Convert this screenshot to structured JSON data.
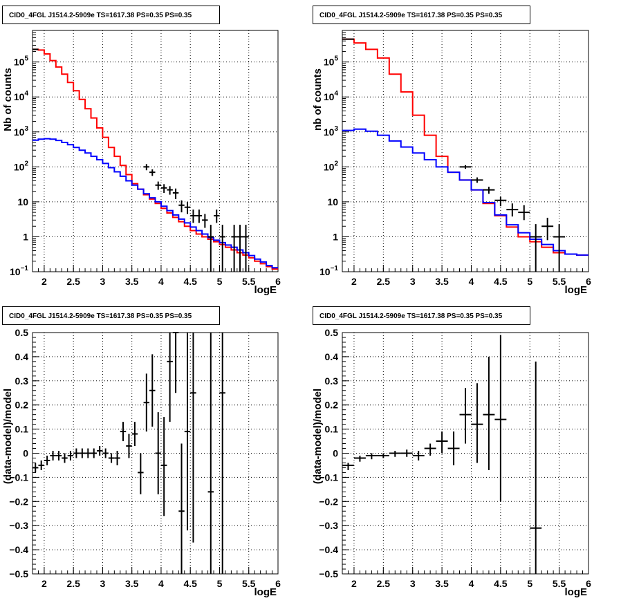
{
  "chart_data": [
    {
      "type": "line",
      "title": "CID0_4FGL J1514.2-5909e TS=1617.38 PS=0.35 PS=0.35",
      "xlabel": "logE",
      "ylabel": "Nb of counts",
      "xlim": [
        1.8,
        6.0
      ],
      "ylim": [
        0.1,
        800000
      ],
      "yscale": "log",
      "grid": true,
      "xticks": [
        "2",
        "2.5",
        "3",
        "3.5",
        "4",
        "4.5",
        "5",
        "5.5",
        "6"
      ],
      "yticks": [
        {
          "v": 0.1,
          "base": "10",
          "exp": "−1"
        },
        {
          "v": 1,
          "label": "1"
        },
        {
          "v": 10,
          "label": "10"
        },
        {
          "v": 100,
          "base": "10",
          "exp": "2"
        },
        {
          "v": 1000,
          "base": "10",
          "exp": "3"
        },
        {
          "v": 10000,
          "base": "10",
          "exp": "4"
        },
        {
          "v": 100000,
          "base": "10",
          "exp": "5"
        }
      ],
      "series": [
        {
          "color": "#ff0000",
          "kind": "step",
          "edges": [
            1.8,
            1.9,
            2.0,
            2.1,
            2.2,
            2.3,
            2.4,
            2.5,
            2.6,
            2.7,
            2.8,
            2.9,
            3.0,
            3.1,
            3.2,
            3.3,
            3.4,
            3.5,
            3.6,
            3.7,
            3.8,
            3.9,
            4.0,
            4.1,
            4.2,
            4.3,
            4.4,
            4.5,
            4.6,
            4.7,
            4.8,
            4.9,
            5.0,
            5.1,
            5.2,
            5.3,
            5.4,
            5.5,
            5.6,
            5.7,
            5.8,
            5.9,
            6.0
          ],
          "values": [
            230000,
            220000,
            170000,
            110000,
            72000,
            45000,
            26000,
            15000,
            8500,
            4600,
            2500,
            1300,
            700,
            360,
            200,
            110,
            60,
            33,
            23,
            16,
            12,
            9,
            6.5,
            4.8,
            3.6,
            2.7,
            2.0,
            1.5,
            1.2,
            1.0,
            0.85,
            0.72,
            0.6,
            0.5,
            0.42,
            0.35,
            0.3,
            0.25,
            0.2,
            0.17,
            0.14,
            0.12
          ]
        },
        {
          "color": "#0000ff",
          "kind": "step",
          "edges": [
            1.8,
            1.9,
            2.0,
            2.1,
            2.2,
            2.3,
            2.4,
            2.5,
            2.6,
            2.7,
            2.8,
            2.9,
            3.0,
            3.1,
            3.2,
            3.3,
            3.4,
            3.5,
            3.6,
            3.7,
            3.8,
            3.9,
            4.0,
            4.1,
            4.2,
            4.3,
            4.4,
            4.5,
            4.6,
            4.7,
            4.8,
            4.9,
            5.0,
            5.1,
            5.2,
            5.3,
            5.4,
            5.5,
            5.6,
            5.7,
            5.8,
            5.9,
            6.0
          ],
          "values": [
            580,
            620,
            640,
            620,
            570,
            500,
            430,
            360,
            300,
            250,
            200,
            160,
            125,
            95,
            72,
            54,
            40,
            30,
            23,
            17,
            13,
            10,
            7.5,
            5.6,
            4.2,
            3.2,
            2.5,
            1.9,
            1.5,
            1.2,
            0.95,
            0.8,
            0.68,
            0.58,
            0.5,
            0.42,
            0.35,
            0.29,
            0.23,
            0.19,
            0.15,
            0.13
          ]
        },
        {
          "color": "#000000",
          "kind": "errorbar",
          "points": [
            {
              "x": 1.85,
              "y": 230000,
              "dx": 0.05,
              "lo": 225000,
              "hi": 235000
            },
            {
              "x": 3.75,
              "y": 100,
              "dx": 0.05,
              "lo": 80,
              "hi": 120
            },
            {
              "x": 3.85,
              "y": 70,
              "dx": 0.05,
              "lo": 55,
              "hi": 85
            },
            {
              "x": 3.95,
              "y": 30,
              "dx": 0.05,
              "lo": 22,
              "hi": 38
            },
            {
              "x": 4.05,
              "y": 25,
              "dx": 0.05,
              "lo": 18,
              "hi": 32
            },
            {
              "x": 4.15,
              "y": 22,
              "dx": 0.05,
              "lo": 16,
              "hi": 28
            },
            {
              "x": 4.25,
              "y": 18,
              "dx": 0.05,
              "lo": 12,
              "hi": 24
            },
            {
              "x": 4.35,
              "y": 8,
              "dx": 0.05,
              "lo": 5,
              "hi": 11
            },
            {
              "x": 4.45,
              "y": 7,
              "dx": 0.05,
              "lo": 4.5,
              "hi": 10
            },
            {
              "x": 4.55,
              "y": 4,
              "dx": 0.05,
              "lo": 2.5,
              "hi": 6
            },
            {
              "x": 4.65,
              "y": 4,
              "dx": 0.05,
              "lo": 2.5,
              "hi": 6
            },
            {
              "x": 4.75,
              "y": 3,
              "dx": 0.05,
              "lo": 1.8,
              "hi": 4.5
            },
            {
              "x": 4.85,
              "y": 1,
              "dx": 0.05,
              "lo": 0.1,
              "hi": 2.2
            },
            {
              "x": 4.95,
              "y": 4,
              "dx": 0.05,
              "lo": 2.5,
              "hi": 6
            },
            {
              "x": 5.05,
              "y": 1,
              "dx": 0.05,
              "lo": 0.1,
              "hi": 2.2
            },
            {
              "x": 5.25,
              "y": 1,
              "dx": 0.05,
              "lo": 0.1,
              "hi": 2.2
            },
            {
              "x": 5.35,
              "y": 1,
              "dx": 0.05,
              "lo": 0.1,
              "hi": 2.2
            },
            {
              "x": 5.45,
              "y": 1,
              "dx": 0.05,
              "lo": 0.1,
              "hi": 2.2
            }
          ]
        }
      ]
    },
    {
      "type": "line",
      "title": "CID0_4FGL J1514.2-5909e TS=1617.38 PS=0.35 PS=0.35",
      "xlabel": "logE",
      "ylabel": "nb of counts",
      "xlim": [
        1.8,
        6.0
      ],
      "ylim": [
        0.1,
        800000
      ],
      "yscale": "log",
      "grid": true,
      "xticks": [
        "2",
        "2.5",
        "3",
        "3.5",
        "4",
        "4.5",
        "5",
        "5.5",
        "6"
      ],
      "yticks": [
        {
          "v": 0.1,
          "base": "10",
          "exp": "−1"
        },
        {
          "v": 1,
          "label": "1"
        },
        {
          "v": 10,
          "label": "10"
        },
        {
          "v": 100,
          "base": "10",
          "exp": "2"
        },
        {
          "v": 1000,
          "base": "10",
          "exp": "3"
        },
        {
          "v": 10000,
          "base": "10",
          "exp": "4"
        },
        {
          "v": 100000,
          "base": "10",
          "exp": "5"
        }
      ],
      "series": [
        {
          "color": "#ff0000",
          "kind": "step",
          "edges": [
            1.8,
            2.0,
            2.2,
            2.4,
            2.6,
            2.8,
            3.0,
            3.2,
            3.4,
            3.6,
            3.8,
            4.0,
            4.2,
            4.4,
            4.6,
            4.8,
            5.0,
            5.2,
            5.4,
            5.6,
            5.8,
            6.0
          ],
          "values": [
            450000,
            350000,
            230000,
            130000,
            45000,
            14000,
            3000,
            800,
            200,
            70,
            42,
            22,
            9,
            4,
            1.9,
            1.0,
            0.72,
            0.5,
            0.35,
            0.32,
            0.3
          ]
        },
        {
          "color": "#0000ff",
          "kind": "step",
          "edges": [
            1.8,
            2.0,
            2.2,
            2.4,
            2.6,
            2.8,
            3.0,
            3.2,
            3.4,
            3.6,
            3.8,
            4.0,
            4.2,
            4.4,
            4.6,
            4.8,
            5.0,
            5.2,
            5.4,
            5.6,
            5.8,
            6.0
          ],
          "values": [
            1100,
            1200,
            1050,
            800,
            550,
            370,
            250,
            160,
            100,
            70,
            42,
            22,
            9.5,
            4.2,
            2.2,
            1.3,
            0.85,
            0.6,
            0.4,
            0.32,
            0.3
          ]
        },
        {
          "color": "#000000",
          "kind": "errorbar",
          "points": [
            {
              "x": 1.9,
              "y": 450000,
              "dx": 0.1,
              "lo": 440000,
              "hi": 460000
            },
            {
              "x": 3.9,
              "y": 100,
              "dx": 0.1,
              "lo": 88,
              "hi": 112
            },
            {
              "x": 4.1,
              "y": 42,
              "dx": 0.1,
              "lo": 35,
              "hi": 50
            },
            {
              "x": 4.3,
              "y": 22,
              "dx": 0.1,
              "lo": 17,
              "hi": 27
            },
            {
              "x": 4.5,
              "y": 11,
              "dx": 0.1,
              "lo": 7.5,
              "hi": 14
            },
            {
              "x": 4.7,
              "y": 6,
              "dx": 0.1,
              "lo": 3.8,
              "hi": 9
            },
            {
              "x": 4.9,
              "y": 5,
              "dx": 0.1,
              "lo": 3,
              "hi": 8
            },
            {
              "x": 5.1,
              "y": 1,
              "dx": 0.1,
              "lo": 0.1,
              "hi": 2.3
            },
            {
              "x": 5.3,
              "y": 2,
              "dx": 0.1,
              "lo": 0.8,
              "hi": 3.5
            },
            {
              "x": 5.5,
              "y": 1,
              "dx": 0.1,
              "lo": 0.1,
              "hi": 2.3
            }
          ]
        }
      ]
    },
    {
      "type": "scatter",
      "title": "CID0_4FGL J1514.2-5909e TS=1617.38 PS=0.35 PS=0.35",
      "xlabel": "logE",
      "ylabel": "(data-model)/model",
      "xlim": [
        1.8,
        6.0
      ],
      "ylim": [
        -0.5,
        0.5
      ],
      "grid": true,
      "xticks": [
        "2",
        "2.5",
        "3",
        "3.5",
        "4",
        "4.5",
        "5",
        "5.5",
        "6"
      ],
      "yticks": [
        "−0.5",
        "−0.4",
        "−0.3",
        "−0.2",
        "−0.1",
        "0",
        "0.1",
        "0.2",
        "0.3",
        "0.4",
        "0.5"
      ],
      "points": [
        {
          "x": 1.85,
          "y": -0.06,
          "dx": 0.05,
          "lo": -0.08,
          "hi": -0.04
        },
        {
          "x": 1.95,
          "y": -0.05,
          "dx": 0.05,
          "lo": -0.07,
          "hi": -0.03
        },
        {
          "x": 2.05,
          "y": -0.03,
          "dx": 0.05,
          "lo": -0.05,
          "hi": -0.01
        },
        {
          "x": 2.15,
          "y": -0.01,
          "dx": 0.05,
          "lo": -0.03,
          "hi": 0.01
        },
        {
          "x": 2.25,
          "y": -0.01,
          "dx": 0.05,
          "lo": -0.03,
          "hi": 0.01
        },
        {
          "x": 2.35,
          "y": -0.02,
          "dx": 0.05,
          "lo": -0.04,
          "hi": 0.0
        },
        {
          "x": 2.45,
          "y": -0.01,
          "dx": 0.05,
          "lo": -0.03,
          "hi": 0.01
        },
        {
          "x": 2.55,
          "y": 0.0,
          "dx": 0.05,
          "lo": -0.02,
          "hi": 0.02
        },
        {
          "x": 2.65,
          "y": 0.0,
          "dx": 0.05,
          "lo": -0.02,
          "hi": 0.02
        },
        {
          "x": 2.75,
          "y": 0.0,
          "dx": 0.05,
          "lo": -0.02,
          "hi": 0.02
        },
        {
          "x": 2.85,
          "y": 0.0,
          "dx": 0.05,
          "lo": -0.02,
          "hi": 0.02
        },
        {
          "x": 2.95,
          "y": 0.01,
          "dx": 0.05,
          "lo": -0.01,
          "hi": 0.03
        },
        {
          "x": 3.05,
          "y": 0.0,
          "dx": 0.05,
          "lo": -0.02,
          "hi": 0.02
        },
        {
          "x": 3.15,
          "y": -0.02,
          "dx": 0.05,
          "lo": -0.04,
          "hi": 0.0
        },
        {
          "x": 3.25,
          "y": -0.02,
          "dx": 0.05,
          "lo": -0.05,
          "hi": 0.01
        },
        {
          "x": 3.35,
          "y": 0.09,
          "dx": 0.05,
          "lo": 0.05,
          "hi": 0.13
        },
        {
          "x": 3.45,
          "y": 0.03,
          "dx": 0.05,
          "lo": -0.02,
          "hi": 0.08
        },
        {
          "x": 3.55,
          "y": 0.08,
          "dx": 0.05,
          "lo": 0.03,
          "hi": 0.13
        },
        {
          "x": 3.65,
          "y": -0.08,
          "dx": 0.05,
          "lo": -0.17,
          "hi": 0.0
        },
        {
          "x": 3.75,
          "y": 0.21,
          "dx": 0.05,
          "lo": 0.09,
          "hi": 0.33
        },
        {
          "x": 3.85,
          "y": 0.26,
          "dx": 0.05,
          "lo": 0.11,
          "hi": 0.41
        },
        {
          "x": 3.95,
          "y": 0.0,
          "dx": 0.05,
          "lo": -0.17,
          "hi": 0.17
        },
        {
          "x": 4.05,
          "y": -0.05,
          "dx": 0.05,
          "lo": -0.26,
          "hi": 0.15
        },
        {
          "x": 4.15,
          "y": 0.38,
          "dx": 0.05,
          "lo": 0.13,
          "hi": 0.5
        },
        {
          "x": 4.25,
          "y": 0.5,
          "dx": 0.05,
          "lo": 0.25,
          "hi": 0.5
        },
        {
          "x": 4.35,
          "y": -0.24,
          "dx": 0.05,
          "lo": -0.5,
          "hi": 0.04
        },
        {
          "x": 4.45,
          "y": 0.09,
          "dx": 0.05,
          "lo": -0.32,
          "hi": 0.5
        },
        {
          "x": 4.55,
          "y": 0.25,
          "dx": 0.05,
          "lo": -0.37,
          "hi": 0.5
        },
        {
          "x": 4.85,
          "y": -0.16,
          "dx": 0.05,
          "lo": -0.5,
          "hi": 0.5
        },
        {
          "x": 5.05,
          "y": 0.25,
          "dx": 0.05,
          "lo": -0.5,
          "hi": 0.5
        }
      ]
    },
    {
      "type": "scatter",
      "title": "CID0_4FGL J1514.2-5909e TS=1617.38 PS=0.35 PS=0.35",
      "xlabel": "logE",
      "ylabel": "(data-model)/model",
      "xlim": [
        1.8,
        6.0
      ],
      "ylim": [
        -0.5,
        0.5
      ],
      "grid": true,
      "xticks": [
        "2",
        "2.5",
        "3",
        "3.5",
        "4",
        "4.5",
        "5",
        "5.5",
        "6"
      ],
      "yticks": [
        "−0.5",
        "−0.4",
        "−0.3",
        "−0.2",
        "−0.1",
        "0",
        "0.1",
        "0.2",
        "0.3",
        "0.4",
        "0.5"
      ],
      "points": [
        {
          "x": 1.9,
          "y": -0.05,
          "dx": 0.1,
          "lo": -0.07,
          "hi": -0.04
        },
        {
          "x": 2.1,
          "y": -0.02,
          "dx": 0.1,
          "lo": -0.035,
          "hi": -0.01
        },
        {
          "x": 2.3,
          "y": -0.01,
          "dx": 0.1,
          "lo": -0.025,
          "hi": 0.0
        },
        {
          "x": 2.5,
          "y": -0.01,
          "dx": 0.1,
          "lo": -0.02,
          "hi": 0.0
        },
        {
          "x": 2.7,
          "y": 0.0,
          "dx": 0.1,
          "lo": -0.015,
          "hi": 0.01
        },
        {
          "x": 2.9,
          "y": 0.0,
          "dx": 0.1,
          "lo": -0.015,
          "hi": 0.015
        },
        {
          "x": 3.1,
          "y": -0.01,
          "dx": 0.1,
          "lo": -0.03,
          "hi": 0.01
        },
        {
          "x": 3.3,
          "y": 0.02,
          "dx": 0.1,
          "lo": -0.01,
          "hi": 0.04
        },
        {
          "x": 3.5,
          "y": 0.05,
          "dx": 0.1,
          "lo": 0.0,
          "hi": 0.09
        },
        {
          "x": 3.7,
          "y": 0.02,
          "dx": 0.1,
          "lo": -0.05,
          "hi": 0.09
        },
        {
          "x": 3.9,
          "y": 0.16,
          "dx": 0.1,
          "lo": 0.04,
          "hi": 0.27
        },
        {
          "x": 4.1,
          "y": 0.12,
          "dx": 0.1,
          "lo": -0.04,
          "hi": 0.29
        },
        {
          "x": 4.3,
          "y": 0.16,
          "dx": 0.1,
          "lo": -0.07,
          "hi": 0.4
        },
        {
          "x": 4.5,
          "y": 0.14,
          "dx": 0.1,
          "lo": -0.2,
          "hi": 0.49
        },
        {
          "x": 5.1,
          "y": -0.31,
          "dx": 0.1,
          "lo": -0.5,
          "hi": 0.38
        }
      ]
    }
  ]
}
